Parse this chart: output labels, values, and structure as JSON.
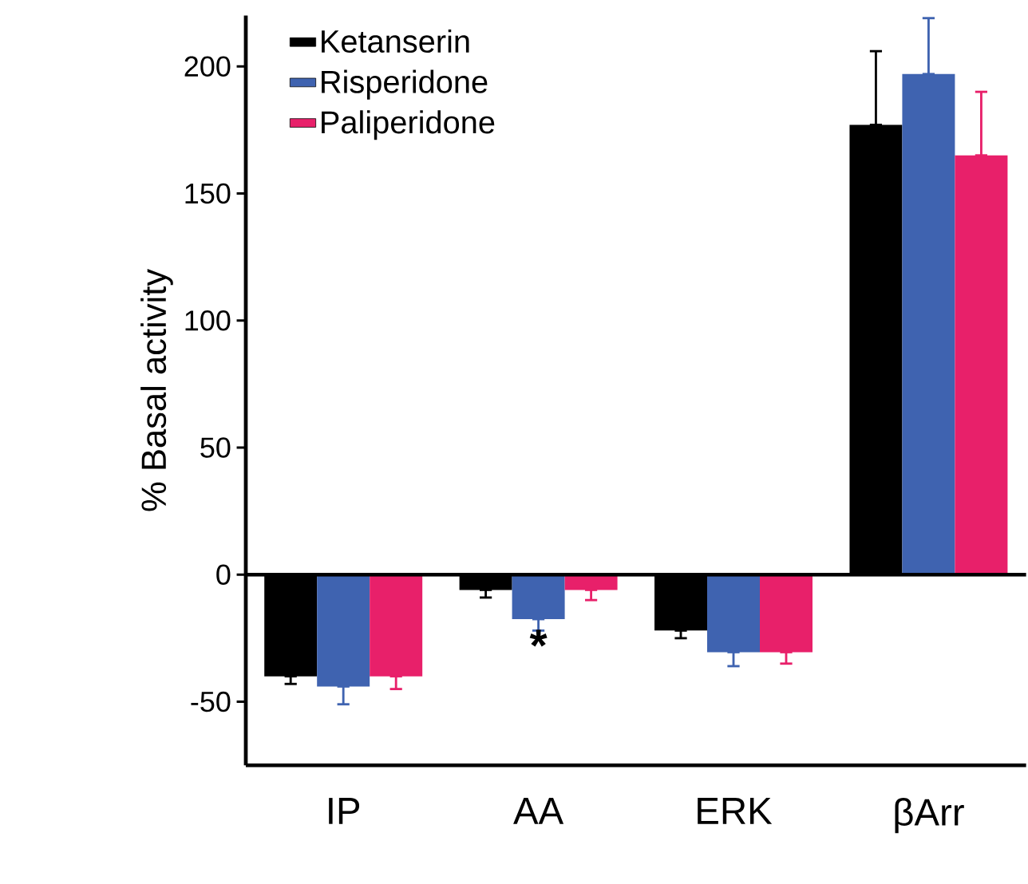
{
  "chart_data": {
    "type": "bar",
    "ylabel": "% Basal activity",
    "categories": [
      "IP",
      "AA",
      "ERK",
      "βArr"
    ],
    "series": [
      {
        "name": "Ketanserin",
        "color": "#000000",
        "values": [
          -40,
          -6,
          -22,
          177
        ],
        "errors": [
          [
            -43,
            -40
          ],
          [
            -9,
            -6
          ],
          [
            -25,
            -22
          ],
          [
            177,
            206
          ]
        ]
      },
      {
        "name": "Risperidone",
        "color": "#3f63b0",
        "values": [
          -44,
          -17.5,
          -30.5,
          197
        ],
        "errors": [
          [
            -51,
            -44
          ],
          [
            -22,
            -17.5
          ],
          [
            -36,
            -30.5
          ],
          [
            197,
            219
          ]
        ]
      },
      {
        "name": "Paliperidone",
        "color": "#e8206a",
        "values": [
          -40,
          -6,
          -30.5,
          165
        ],
        "errors": [
          [
            -45,
            -40
          ],
          [
            -10,
            -6
          ],
          [
            -35,
            -30.5
          ],
          [
            165,
            190
          ]
        ]
      }
    ],
    "ylim": [
      -75,
      220
    ],
    "yticks": [
      -50,
      0,
      50,
      100,
      150,
      200
    ],
    "ref_lines": [
      {
        "axis": "y",
        "value": 0
      }
    ],
    "annotations": [
      "*"
    ],
    "legend": "top left",
    "grid": false
  }
}
